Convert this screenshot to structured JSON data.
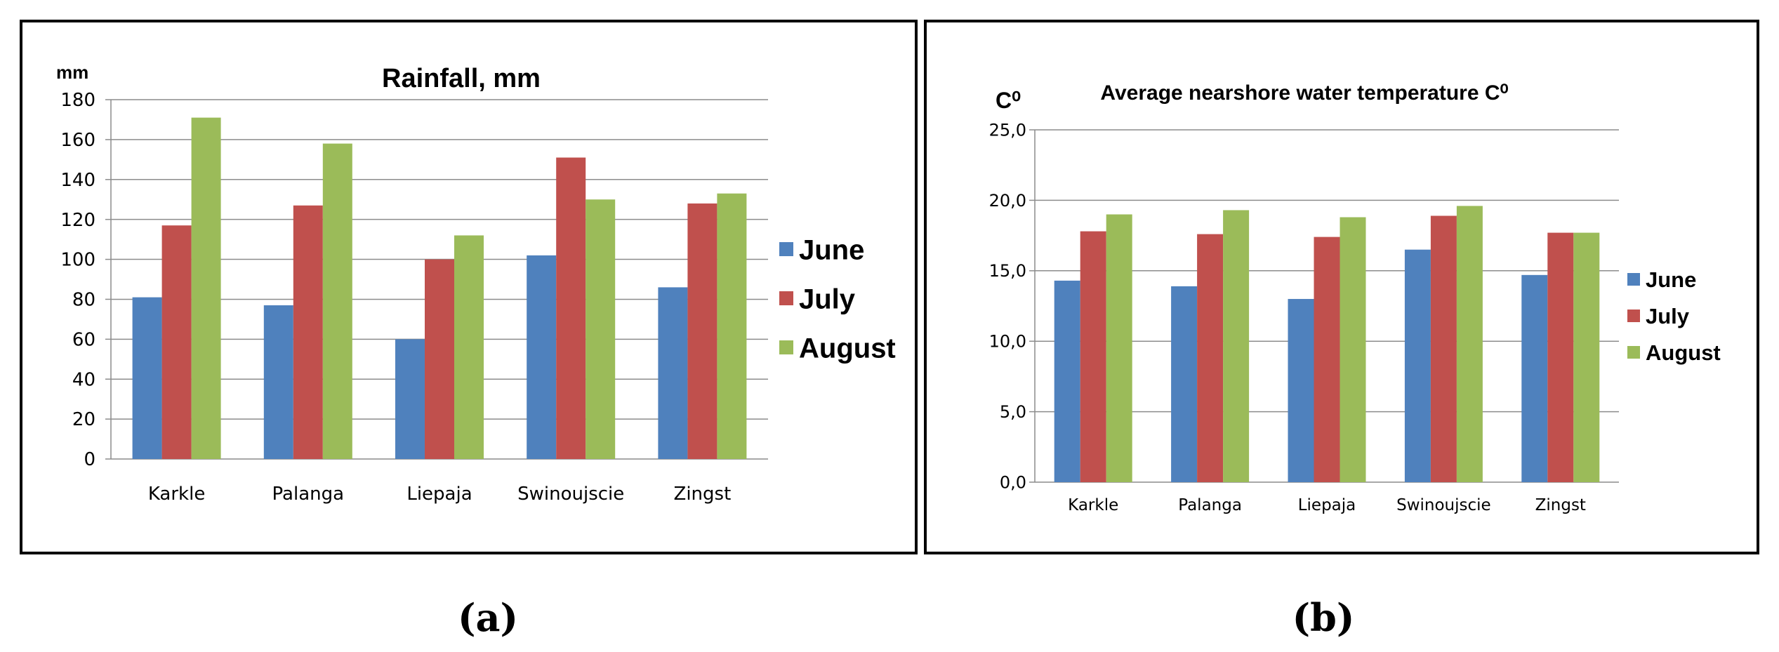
{
  "figure": {
    "captions": [
      "(a)",
      "(b)"
    ]
  },
  "chart_data": [
    {
      "type": "bar",
      "title": "Rainfall, mm",
      "unit_label": "mm",
      "xlabel": "",
      "ylabel": "mm",
      "categories": [
        "Karkle",
        "Palanga",
        "Liepaja",
        "Swinoujscie",
        "Zingst"
      ],
      "series": [
        {
          "name": "June",
          "values": [
            81,
            77,
            60,
            102,
            86
          ],
          "color": "#4F81BD"
        },
        {
          "name": "July",
          "values": [
            117,
            127,
            100,
            151,
            128
          ],
          "color": "#C0504D"
        },
        {
          "name": "August",
          "values": [
            171,
            158,
            112,
            130,
            133
          ],
          "color": "#9BBB59"
        }
      ],
      "ylim": [
        0,
        180
      ],
      "yticks": [
        "0",
        "20",
        "40",
        "60",
        "80",
        "100",
        "120",
        "140",
        "160",
        "180"
      ],
      "grid": true,
      "legend_position": "right"
    },
    {
      "type": "bar",
      "title": "Average nearshore water temperature  C⁰",
      "unit_label": "C⁰",
      "xlabel": "",
      "ylabel": "C⁰",
      "categories": [
        "Karkle",
        "Palanga",
        "Liepaja",
        "Swinoujscie",
        "Zingst"
      ],
      "series": [
        {
          "name": "June",
          "values": [
            14.3,
            13.9,
            13.0,
            16.5,
            14.7
          ],
          "color": "#4F81BD"
        },
        {
          "name": "July",
          "values": [
            17.8,
            17.6,
            17.4,
            18.9,
            17.7
          ],
          "color": "#C0504D"
        },
        {
          "name": "August",
          "values": [
            19.0,
            19.3,
            18.8,
            19.6,
            17.7
          ],
          "color": "#9BBB59"
        }
      ],
      "ylim": [
        0,
        25
      ],
      "yticks": [
        "0,0",
        "5,0",
        "10,0",
        "15,0",
        "20,0",
        "25,0"
      ],
      "grid": true,
      "legend_position": "right"
    }
  ]
}
